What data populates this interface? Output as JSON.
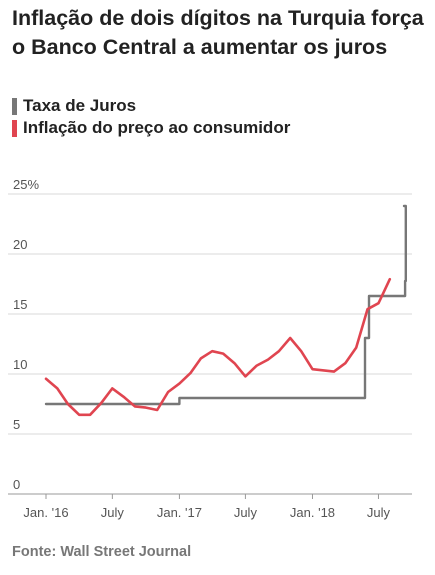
{
  "title": "Inflação de dois dígitos na Turquia força o Banco Central a aumentar  os juros",
  "source": "Fonte: Wall Street Journal",
  "chart_data": {
    "type": "line",
    "title": "Inflação de dois dígitos na Turquia força o Banco Central a aumentar  os juros",
    "xlabel": "",
    "ylabel": "",
    "ylim": [
      0,
      25
    ],
    "yticks": [
      0,
      5,
      10,
      15,
      20,
      25
    ],
    "ytick_labels": [
      "0",
      "5",
      "10",
      "15",
      "20",
      "25%"
    ],
    "xlim": [
      "2016-01-01",
      "2018-10-01"
    ],
    "xticks": [
      "2016-01-01",
      "2016-07-01",
      "2017-01-01",
      "2017-07-01",
      "2018-01-01",
      "2018-07-01"
    ],
    "xtick_labels": [
      "Jan. '16",
      "July",
      "Jan. '17",
      "July",
      "Jan. '18",
      "July"
    ],
    "grid": true,
    "legend_position": "top-left",
    "series": [
      {
        "name": "Taxa de Juros",
        "color": "#777777",
        "step": true,
        "x": [
          "2016-01-01",
          "2016-12-31",
          "2017-01-01",
          "2018-05-20",
          "2018-05-25",
          "2018-06-05",
          "2018-09-12",
          "2018-09-14"
        ],
        "y": [
          7.5,
          7.5,
          8,
          8,
          13,
          16.5,
          17.75,
          24
        ]
      },
      {
        "name": "Inflação do preço ao consumidor",
        "color": "#e04550",
        "step": false,
        "x": [
          "2016-01-01",
          "2016-02-01",
          "2016-03-01",
          "2016-04-01",
          "2016-05-01",
          "2016-06-01",
          "2016-07-01",
          "2016-08-01",
          "2016-09-01",
          "2016-10-01",
          "2016-11-01",
          "2016-12-01",
          "2017-01-01",
          "2017-02-01",
          "2017-03-01",
          "2017-04-01",
          "2017-05-01",
          "2017-06-01",
          "2017-07-01",
          "2017-08-01",
          "2017-09-01",
          "2017-10-01",
          "2017-11-01",
          "2017-12-01",
          "2018-01-01",
          "2018-02-01",
          "2018-03-01",
          "2018-04-01",
          "2018-05-01",
          "2018-06-01",
          "2018-07-01",
          "2018-08-01"
        ],
        "y": [
          9.6,
          8.8,
          7.5,
          6.6,
          6.6,
          7.6,
          8.8,
          8.1,
          7.3,
          7.2,
          7.0,
          8.5,
          9.2,
          10.1,
          11.3,
          11.9,
          11.7,
          10.9,
          9.8,
          10.7,
          11.2,
          11.9,
          13.0,
          11.9,
          10.4,
          10.3,
          10.2,
          10.9,
          12.2,
          15.4,
          15.9,
          17.9
        ]
      }
    ]
  }
}
